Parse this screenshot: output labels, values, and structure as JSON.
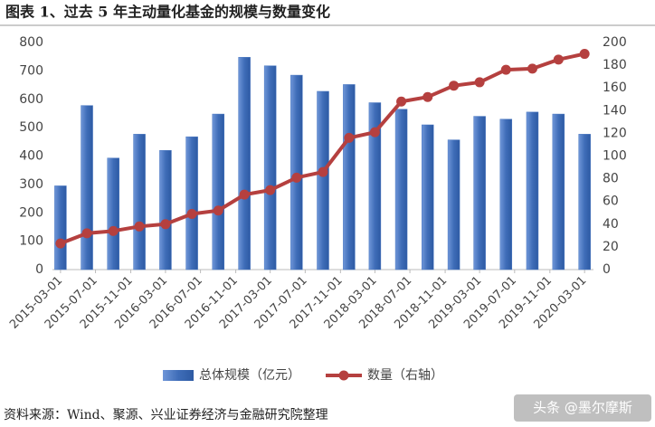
{
  "chart_data": {
    "type": "bar-line",
    "title": "图表 1、过去 5 年主动量化基金的规模与数量变化",
    "source": "资料来源：Wind、聚源、兴业证券经济与金融研究院整理",
    "watermark": "头条 @墨尔摩斯",
    "x": [
      "2015-03-01",
      "2015-06-01",
      "2015-09-01",
      "2015-12-01",
      "2016-03-01",
      "2016-06-01",
      "2016-09-01",
      "2016-12-01",
      "2017-03-01",
      "2017-06-01",
      "2017-09-01",
      "2017-12-01",
      "2018-03-01",
      "2018-06-01",
      "2018-09-01",
      "2018-12-01",
      "2019-03-01",
      "2019-06-01",
      "2019-09-01",
      "2019-12-01",
      "2020-03-01"
    ],
    "xlim": [
      "2015-02-01",
      "2020-04-01"
    ],
    "xticks": [
      "2015-03-01",
      "2015-07-01",
      "2015-11-01",
      "2016-03-01",
      "2016-07-01",
      "2016-11-01",
      "2017-03-01",
      "2017-07-01",
      "2017-11-01",
      "2018-03-01",
      "2018-07-01",
      "2018-11-01",
      "2019-03-01",
      "2019-07-01",
      "2019-11-01",
      "2020-03-01"
    ],
    "series": [
      {
        "name": "总体规模（亿元）",
        "color": "#4a78c2",
        "type": "bar",
        "values": [
          295,
          578,
          393,
          477,
          420,
          468,
          548,
          748,
          718,
          685,
          628,
          652,
          588,
          565,
          510,
          457,
          540,
          530,
          555,
          548,
          477
        ]
      },
      {
        "name": "数量（右轴）",
        "color": "#b5403f",
        "type": "line",
        "axis": "y2",
        "values": [
          23,
          32,
          34,
          38,
          40,
          49,
          52,
          66,
          70,
          81,
          86,
          116,
          121,
          148,
          152,
          162,
          165,
          176,
          177,
          185,
          190
        ]
      }
    ],
    "ylim": [
      0,
      800
    ],
    "yticks": [
      0,
      100,
      200,
      300,
      400,
      500,
      600,
      700,
      800
    ],
    "y2lim": [
      0,
      200
    ],
    "y2ticks": [
      0,
      20,
      40,
      60,
      80,
      100,
      120,
      140,
      160,
      180,
      200
    ]
  }
}
